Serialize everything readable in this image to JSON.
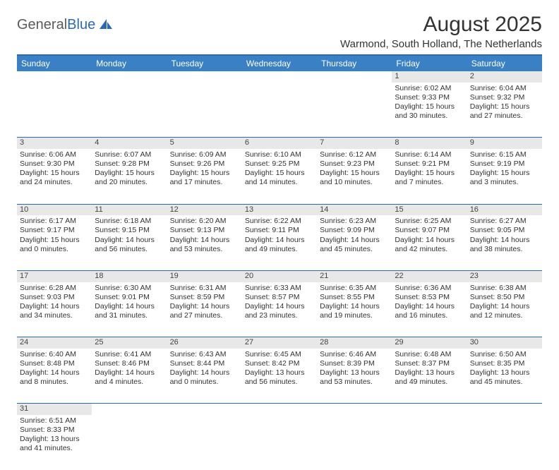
{
  "logo": {
    "text1": "General",
    "text2": "Blue"
  },
  "title": "August 2025",
  "location": "Warmond, South Holland, The Netherlands",
  "colors": {
    "header_bg": "#3a80c4",
    "header_border": "#2a6ab0",
    "daynum_bg": "#e8e8e8",
    "row_border": "#2a6ab0",
    "logo_gray": "#5a5a5a",
    "logo_blue": "#2a6ab0"
  },
  "day_headers": [
    "Sunday",
    "Monday",
    "Tuesday",
    "Wednesday",
    "Thursday",
    "Friday",
    "Saturday"
  ],
  "weeks": [
    [
      null,
      null,
      null,
      null,
      null,
      {
        "n": "1",
        "sr": "Sunrise: 6:02 AM",
        "ss": "Sunset: 9:33 PM",
        "dl": "Daylight: 15 hours and 30 minutes."
      },
      {
        "n": "2",
        "sr": "Sunrise: 6:04 AM",
        "ss": "Sunset: 9:32 PM",
        "dl": "Daylight: 15 hours and 27 minutes."
      }
    ],
    [
      {
        "n": "3",
        "sr": "Sunrise: 6:06 AM",
        "ss": "Sunset: 9:30 PM",
        "dl": "Daylight: 15 hours and 24 minutes."
      },
      {
        "n": "4",
        "sr": "Sunrise: 6:07 AM",
        "ss": "Sunset: 9:28 PM",
        "dl": "Daylight: 15 hours and 20 minutes."
      },
      {
        "n": "5",
        "sr": "Sunrise: 6:09 AM",
        "ss": "Sunset: 9:26 PM",
        "dl": "Daylight: 15 hours and 17 minutes."
      },
      {
        "n": "6",
        "sr": "Sunrise: 6:10 AM",
        "ss": "Sunset: 9:25 PM",
        "dl": "Daylight: 15 hours and 14 minutes."
      },
      {
        "n": "7",
        "sr": "Sunrise: 6:12 AM",
        "ss": "Sunset: 9:23 PM",
        "dl": "Daylight: 15 hours and 10 minutes."
      },
      {
        "n": "8",
        "sr": "Sunrise: 6:14 AM",
        "ss": "Sunset: 9:21 PM",
        "dl": "Daylight: 15 hours and 7 minutes."
      },
      {
        "n": "9",
        "sr": "Sunrise: 6:15 AM",
        "ss": "Sunset: 9:19 PM",
        "dl": "Daylight: 15 hours and 3 minutes."
      }
    ],
    [
      {
        "n": "10",
        "sr": "Sunrise: 6:17 AM",
        "ss": "Sunset: 9:17 PM",
        "dl": "Daylight: 15 hours and 0 minutes."
      },
      {
        "n": "11",
        "sr": "Sunrise: 6:18 AM",
        "ss": "Sunset: 9:15 PM",
        "dl": "Daylight: 14 hours and 56 minutes."
      },
      {
        "n": "12",
        "sr": "Sunrise: 6:20 AM",
        "ss": "Sunset: 9:13 PM",
        "dl": "Daylight: 14 hours and 53 minutes."
      },
      {
        "n": "13",
        "sr": "Sunrise: 6:22 AM",
        "ss": "Sunset: 9:11 PM",
        "dl": "Daylight: 14 hours and 49 minutes."
      },
      {
        "n": "14",
        "sr": "Sunrise: 6:23 AM",
        "ss": "Sunset: 9:09 PM",
        "dl": "Daylight: 14 hours and 45 minutes."
      },
      {
        "n": "15",
        "sr": "Sunrise: 6:25 AM",
        "ss": "Sunset: 9:07 PM",
        "dl": "Daylight: 14 hours and 42 minutes."
      },
      {
        "n": "16",
        "sr": "Sunrise: 6:27 AM",
        "ss": "Sunset: 9:05 PM",
        "dl": "Daylight: 14 hours and 38 minutes."
      }
    ],
    [
      {
        "n": "17",
        "sr": "Sunrise: 6:28 AM",
        "ss": "Sunset: 9:03 PM",
        "dl": "Daylight: 14 hours and 34 minutes."
      },
      {
        "n": "18",
        "sr": "Sunrise: 6:30 AM",
        "ss": "Sunset: 9:01 PM",
        "dl": "Daylight: 14 hours and 31 minutes."
      },
      {
        "n": "19",
        "sr": "Sunrise: 6:31 AM",
        "ss": "Sunset: 8:59 PM",
        "dl": "Daylight: 14 hours and 27 minutes."
      },
      {
        "n": "20",
        "sr": "Sunrise: 6:33 AM",
        "ss": "Sunset: 8:57 PM",
        "dl": "Daylight: 14 hours and 23 minutes."
      },
      {
        "n": "21",
        "sr": "Sunrise: 6:35 AM",
        "ss": "Sunset: 8:55 PM",
        "dl": "Daylight: 14 hours and 19 minutes."
      },
      {
        "n": "22",
        "sr": "Sunrise: 6:36 AM",
        "ss": "Sunset: 8:53 PM",
        "dl": "Daylight: 14 hours and 16 minutes."
      },
      {
        "n": "23",
        "sr": "Sunrise: 6:38 AM",
        "ss": "Sunset: 8:50 PM",
        "dl": "Daylight: 14 hours and 12 minutes."
      }
    ],
    [
      {
        "n": "24",
        "sr": "Sunrise: 6:40 AM",
        "ss": "Sunset: 8:48 PM",
        "dl": "Daylight: 14 hours and 8 minutes."
      },
      {
        "n": "25",
        "sr": "Sunrise: 6:41 AM",
        "ss": "Sunset: 8:46 PM",
        "dl": "Daylight: 14 hours and 4 minutes."
      },
      {
        "n": "26",
        "sr": "Sunrise: 6:43 AM",
        "ss": "Sunset: 8:44 PM",
        "dl": "Daylight: 14 hours and 0 minutes."
      },
      {
        "n": "27",
        "sr": "Sunrise: 6:45 AM",
        "ss": "Sunset: 8:42 PM",
        "dl": "Daylight: 13 hours and 56 minutes."
      },
      {
        "n": "28",
        "sr": "Sunrise: 6:46 AM",
        "ss": "Sunset: 8:39 PM",
        "dl": "Daylight: 13 hours and 53 minutes."
      },
      {
        "n": "29",
        "sr": "Sunrise: 6:48 AM",
        "ss": "Sunset: 8:37 PM",
        "dl": "Daylight: 13 hours and 49 minutes."
      },
      {
        "n": "30",
        "sr": "Sunrise: 6:50 AM",
        "ss": "Sunset: 8:35 PM",
        "dl": "Daylight: 13 hours and 45 minutes."
      }
    ],
    [
      {
        "n": "31",
        "sr": "Sunrise: 6:51 AM",
        "ss": "Sunset: 8:33 PM",
        "dl": "Daylight: 13 hours and 41 minutes."
      },
      null,
      null,
      null,
      null,
      null,
      null
    ]
  ]
}
